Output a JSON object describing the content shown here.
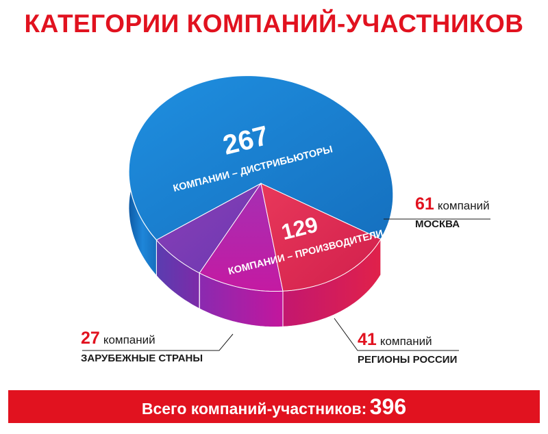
{
  "title": "КАТЕГОРИИ КОМПАНИЙ-УЧАСТНИКОВ",
  "total": {
    "label": "Всего компаний-участников:",
    "value": "396"
  },
  "chart_data": {
    "type": "pie",
    "title": "КАТЕГОРИИ КОМПАНИЙ-УЧАСТНИКОВ",
    "total": 396,
    "slices": [
      {
        "label": "КОМПАНИИ – ДИСТРИБЬЮТОРЫ",
        "value": 267,
        "color": "#1a82d3"
      },
      {
        "label": "КОМПАНИИ – ПРОИЗВОДИТЕЛИ",
        "value": 129,
        "color": "#d0166e",
        "breakdown": [
          {
            "name": "МОСКВА",
            "value": 61,
            "unit": "компаний",
            "color": "#e3285a"
          },
          {
            "name": "РЕГИОНЫ РОССИИ",
            "value": 41,
            "unit": "компаний",
            "color": "#c51ab4"
          },
          {
            "name": "ЗАРУБЕЖНЫЕ СТРАНЫ",
            "value": 27,
            "unit": "компаний",
            "color": "#8a3fb8"
          }
        ]
      }
    ],
    "legend": "callouts",
    "colors": {
      "accent": "#e1121f",
      "text": "#1a1a1a"
    }
  }
}
